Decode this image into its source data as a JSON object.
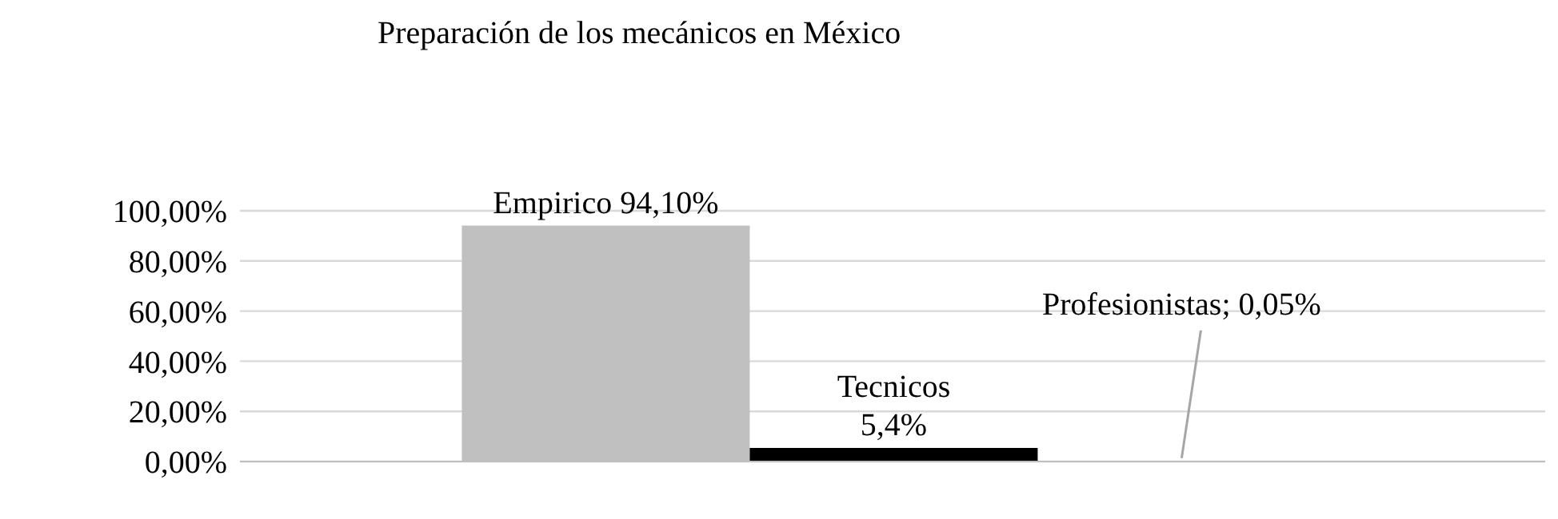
{
  "chart_data": {
    "type": "bar",
    "title": "Preparación de los mecánicos en México",
    "categories": [
      null
    ],
    "series": [
      {
        "color": "#c0c0c0",
        "values": [
          94.1
        ],
        "value_labels": [
          "Empirico 94,10%"
        ]
      },
      {
        "color": "#000000",
        "values": [
          5.4
        ],
        "value_labels": [
          "Tecnicos\n5,4%"
        ]
      },
      {
        "color": "#5b9bd5",
        "values": [
          0.05
        ],
        "value_labels": [
          "Profesionistas; 0,05%"
        ]
      }
    ],
    "ylim": [
      0,
      100
    ],
    "yticks": [
      {
        "value": 0,
        "label": "0,00%"
      },
      {
        "value": 20,
        "label": "20,00%"
      },
      {
        "value": 40,
        "label": "40,00%"
      },
      {
        "value": 60,
        "label": "60,00%"
      },
      {
        "value": 80,
        "label": "80,00%"
      },
      {
        "value": 100,
        "label": "100,00%"
      }
    ],
    "grid": "y",
    "legend": false
  }
}
